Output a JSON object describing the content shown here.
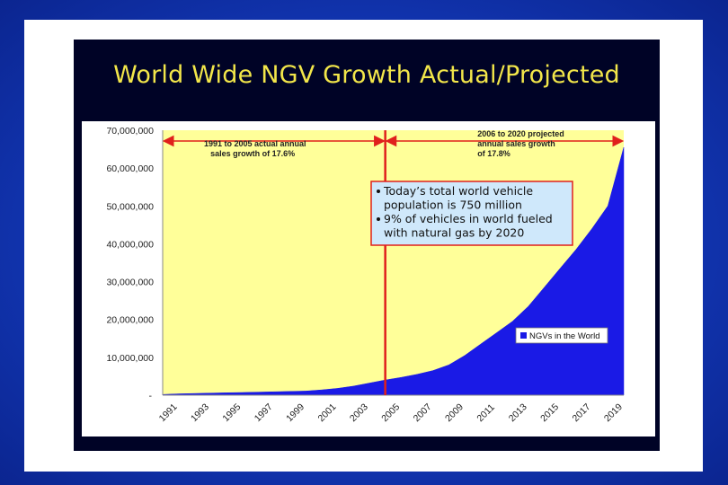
{
  "title": "World Wide NGV Growth Actual/Projected",
  "chart_data": {
    "type": "area",
    "title": "World Wide NGV Growth Actual/Projected",
    "x": [
      1991,
      1992,
      1993,
      1994,
      1995,
      1996,
      1997,
      1998,
      1999,
      2000,
      2001,
      2002,
      2003,
      2004,
      2005,
      2006,
      2007,
      2008,
      2009,
      2010,
      2011,
      2012,
      2013,
      2014,
      2015,
      2016,
      2017,
      2018,
      2019,
      2020
    ],
    "series": [
      {
        "name": "NGVs in the World",
        "values": [
          200000,
          350000,
          450000,
          550000,
          650000,
          720000,
          800000,
          900000,
          1000000,
          1100000,
          1400000,
          1800000,
          2400000,
          3200000,
          4000000,
          4700000,
          5500000,
          6500000,
          8000000,
          10500000,
          13500000,
          16500000,
          19500000,
          23500000,
          28500000,
          33500000,
          38500000,
          44000000,
          50000000,
          65500000
        ]
      }
    ],
    "x_tick_labels": [
      "1991",
      "1993",
      "1995",
      "1997",
      "1999",
      "2001",
      "2003",
      "2005",
      "2007",
      "2009",
      "2011",
      "2013",
      "2015",
      "2017",
      "2019"
    ],
    "y_tick_labels": [
      "-",
      "10,000,000",
      "20,000,000",
      "30,000,000",
      "40,000,000",
      "50,000,000",
      "60,000,000",
      "70,000,000"
    ],
    "ylim": [
      0,
      70000000
    ],
    "xlim": [
      1991,
      2020
    ],
    "grid": false,
    "legend": "right",
    "divider_year": 2005,
    "annotations": {
      "actual": [
        "1991 to 2005 actual annual",
        "sales growth of 17.6%"
      ],
      "projected": [
        "2006 to 2020 projected",
        "annual sales growth",
        "of 17.8%"
      ],
      "callout": [
        "Today’s total world vehicle",
        "population is 750 million",
        "9% of vehicles in world fueled",
        "with natural gas by 2020"
      ]
    },
    "colors": {
      "plot_bg": "#ffff99",
      "area": "#1a1ae6",
      "divider": "#e0201c",
      "callout_bg": "#cfe8fb",
      "callout_border": "#e0201c"
    }
  }
}
